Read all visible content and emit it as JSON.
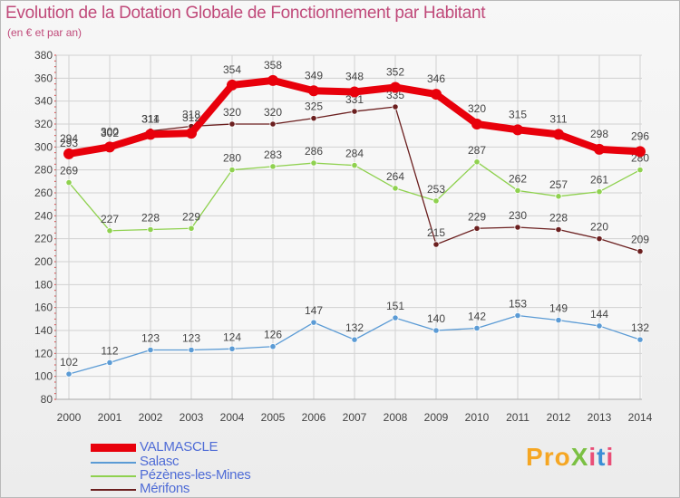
{
  "header": {
    "title": "Evolution de la Dotation Globale de Fonctionnement par Habitant",
    "subtitle": "(en € et par an)"
  },
  "logo": {
    "text": "ProXiti",
    "colors": [
      "#f5a623",
      "#3a8fd6",
      "#7bc043",
      "#e94e77"
    ]
  },
  "chart_data": {
    "type": "line",
    "title": "Evolution de la Dotation Globale de Fonctionnement par Habitant",
    "subtitle": "(en € et par an)",
    "xlabel": "",
    "ylabel": "",
    "x": [
      2000,
      2001,
      2002,
      2003,
      2004,
      2005,
      2006,
      2007,
      2008,
      2009,
      2010,
      2011,
      2012,
      2013,
      2014
    ],
    "ylim": [
      80,
      380
    ],
    "yticks": [
      80,
      100,
      120,
      140,
      160,
      180,
      200,
      220,
      240,
      260,
      280,
      300,
      320,
      340,
      360,
      380
    ],
    "grid": true,
    "legend_position": "bottom-left",
    "series": [
      {
        "name": "VALMASCLE",
        "color": "#e8000b",
        "values": [
          294,
          300,
          311,
          312,
          354,
          358,
          349,
          348,
          352,
          346,
          320,
          315,
          311,
          298,
          296
        ]
      },
      {
        "name": "Salasc",
        "color": "#5b9bd5",
        "values": [
          102,
          112,
          123,
          123,
          124,
          126,
          147,
          132,
          151,
          140,
          142,
          153,
          149,
          144,
          132
        ]
      },
      {
        "name": "Pézènes-les-Mines",
        "color": "#8fd14f",
        "values": [
          269,
          227,
          228,
          229,
          280,
          283,
          286,
          284,
          264,
          253,
          287,
          262,
          257,
          261,
          280
        ]
      },
      {
        "name": "Mérifons",
        "color": "#6b1f1f",
        "values": [
          293,
          302,
          314,
          318,
          320,
          320,
          325,
          331,
          335,
          215,
          229,
          230,
          228,
          220,
          209
        ]
      }
    ]
  }
}
